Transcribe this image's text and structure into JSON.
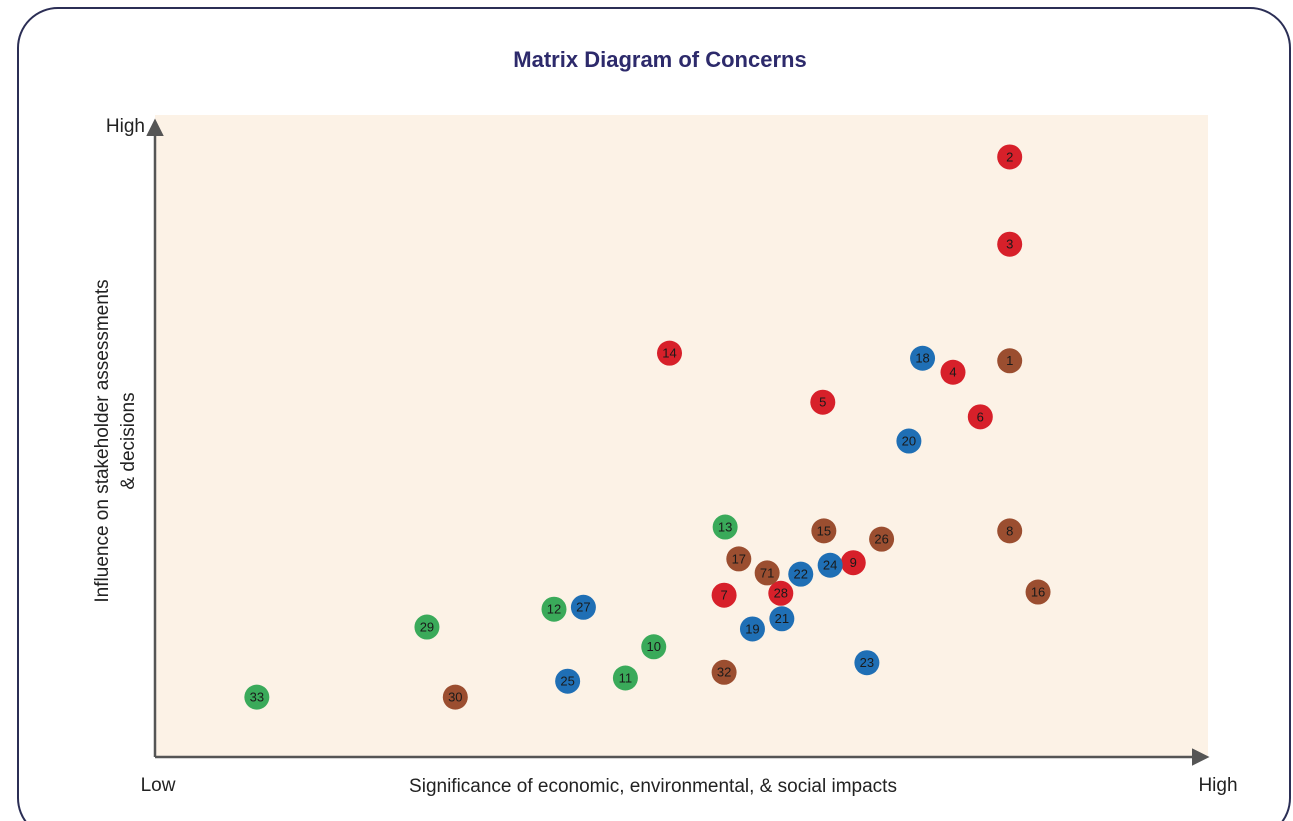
{
  "chart_data": {
    "type": "scatter",
    "title": "Matrix Diagram of Concerns",
    "xlabel": "Significance of economic, environmental, & social impacts",
    "ylabel": [
      "Influence on stakeholder assessments",
      "& decisions"
    ],
    "xlim": [
      0,
      100
    ],
    "ylim": [
      0,
      100
    ],
    "xticks": [
      {
        "value": 0,
        "label": "Low"
      },
      {
        "value": 100,
        "label": "High"
      }
    ],
    "yticks": [
      {
        "value": 100,
        "label": "High"
      }
    ],
    "series": [
      {
        "color": "#d7202a",
        "labels": [
          "2",
          "3",
          "14",
          "4",
          "5",
          "6",
          "9",
          "7",
          "28"
        ],
        "x": [
          81.4,
          81.4,
          49.0,
          76.0,
          63.6,
          78.6,
          66.5,
          54.2,
          59.6
        ],
        "values": [
          94.2,
          80.5,
          63.4,
          60.4,
          55.7,
          53.4,
          30.5,
          25.4,
          25.7
        ]
      },
      {
        "color": "#1f6fb5",
        "labels": [
          "18",
          "20",
          "24",
          "22",
          "21",
          "19",
          "27",
          "25",
          "23"
        ],
        "x": [
          73.1,
          71.8,
          64.3,
          61.5,
          59.7,
          56.9,
          40.8,
          39.3,
          67.8
        ],
        "values": [
          62.6,
          49.6,
          30.1,
          28.7,
          21.7,
          20.1,
          23.5,
          11.9,
          14.8
        ]
      },
      {
        "color": "#3aaa5a",
        "labels": [
          "13",
          "12",
          "29",
          "10",
          "11",
          "33"
        ],
        "x": [
          54.3,
          38.0,
          25.9,
          47.5,
          44.8,
          9.7
        ],
        "values": [
          36.1,
          23.2,
          20.4,
          17.3,
          12.4,
          9.4
        ]
      },
      {
        "color": "#9b4e30",
        "labels": [
          "1",
          "8",
          "16",
          "15",
          "26",
          "17",
          "71",
          "32",
          "30"
        ],
        "x": [
          81.4,
          81.4,
          84.1,
          63.7,
          69.2,
          55.6,
          58.3,
          54.2,
          28.6
        ],
        "values": [
          62.2,
          35.5,
          25.9,
          35.5,
          34.2,
          31.1,
          28.9,
          13.3,
          9.4
        ]
      }
    ]
  }
}
